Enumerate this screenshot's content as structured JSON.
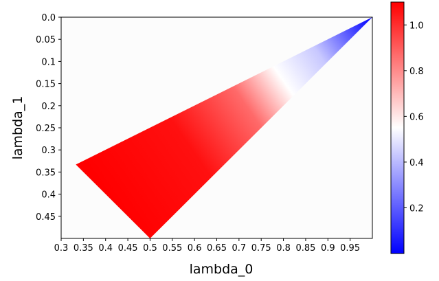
{
  "chart_data": {
    "type": "heatmap",
    "xlabel": "lambda_0",
    "ylabel": "lambda_1",
    "xlim": [
      0.3,
      1.0
    ],
    "ylim": [
      0.5,
      0.0
    ],
    "x_ticks": [
      "0.3",
      "0.35",
      "0.4",
      "0.45",
      "0.5",
      "0.55",
      "0.6",
      "0.65",
      "0.7",
      "0.75",
      "0.8",
      "0.85",
      "0.9",
      "0.95"
    ],
    "x_tick_values": [
      0.3,
      0.35,
      0.4,
      0.45,
      0.5,
      0.55,
      0.6,
      0.65,
      0.7,
      0.75,
      0.8,
      0.85,
      0.9,
      0.95
    ],
    "y_ticks": [
      "0.0",
      "0.05",
      "0.1",
      "0.15",
      "0.2",
      "0.25",
      "0.3",
      "0.35",
      "0.4",
      "0.45"
    ],
    "y_tick_values": [
      0.0,
      0.05,
      0.1,
      0.15,
      0.2,
      0.25,
      0.3,
      0.35,
      0.4,
      0.45
    ],
    "region_vertices": [
      [
        0.333,
        0.333
      ],
      [
        0.5,
        0.5
      ],
      [
        1.0,
        0.0
      ]
    ],
    "value_samples": [
      {
        "x": 0.333,
        "y": 0.333,
        "value": 1.1
      },
      {
        "x": 0.5,
        "y": 0.5,
        "value": 1.1
      },
      {
        "x": 0.6,
        "y": 0.3,
        "value": 1.0
      },
      {
        "x": 0.75,
        "y": 0.2,
        "value": 0.7
      },
      {
        "x": 0.85,
        "y": 0.1,
        "value": 0.4
      },
      {
        "x": 1.0,
        "y": 0.0,
        "value": 0.0
      }
    ],
    "colorbar": {
      "colormap": "bwr",
      "min": 0.0,
      "max": 1.1,
      "ticks": [
        "0.2",
        "0.4",
        "0.6",
        "0.8",
        "1.0"
      ],
      "tick_values": [
        0.2,
        0.4,
        0.6,
        0.8,
        1.0
      ],
      "colors": {
        "low": "#0000ff",
        "mid": "#ffffff",
        "high": "#ff0000"
      }
    },
    "background_color": "#fcfcfc",
    "grid": false
  }
}
